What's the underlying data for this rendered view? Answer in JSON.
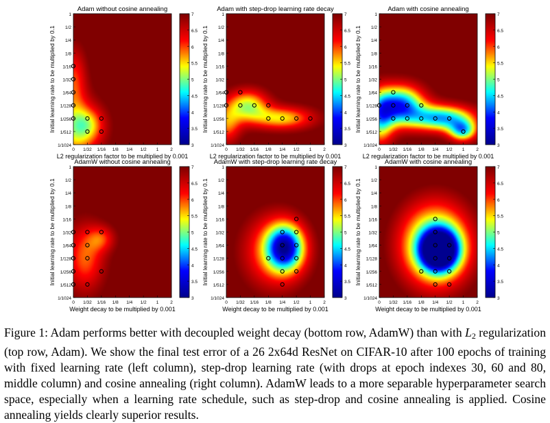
{
  "panel_config": {
    "lr_ticks": [
      "1/1024",
      "1/512",
      "1/256",
      "1/128",
      "1/64",
      "1/32",
      "1/16",
      "1/8",
      "1/4",
      "1/2",
      "1"
    ],
    "wd_ticks": [
      "0",
      "1/32",
      "1/16",
      "1/8",
      "1/4",
      "1/2",
      "1",
      "2"
    ],
    "colorbar_ticks": [
      "3",
      "3.5",
      "4",
      "4.5",
      "5",
      "5.5",
      "6",
      "6.5",
      "7"
    ],
    "ylabel": "Initial learning rate to be multiplied by 0.1",
    "xlabel_top": "L2 regularization factor to be multiplied by 0.001",
    "xlabel_bottom": "Weight decay to be multiplied by 0.001",
    "value_range": [
      3,
      7
    ],
    "colormap": [
      "#00008f",
      "#0000ff",
      "#00ffff",
      "#ffff00",
      "#ff0000",
      "#800000"
    ]
  },
  "chart_data": [
    {
      "type": "heatmap",
      "title": "Adam without cosine annealing",
      "xlabel": "L2 regularization factor to be multiplied by 0.001",
      "ylabel": "Initial learning rate to be multiplied by 0.1",
      "colorbar_range": [
        3,
        7
      ],
      "base_value": 7.2,
      "basins": [
        {
          "x": 0,
          "y": 1,
          "value": 5.6,
          "sx": 1.8,
          "sy": 2.5
        },
        {
          "x": 0,
          "y": 5,
          "value": 6.1,
          "sx": 0.9,
          "sy": 2.5
        },
        {
          "x": 1,
          "y": 1.5,
          "value": 6.2,
          "sx": 1.2,
          "sy": 1.3
        }
      ],
      "markers": [
        [
          0,
          6
        ],
        [
          0,
          5
        ],
        [
          0,
          4
        ],
        [
          0,
          3
        ],
        [
          0,
          2
        ],
        [
          1,
          2
        ],
        [
          2,
          2
        ],
        [
          1,
          1
        ],
        [
          2,
          1
        ]
      ]
    },
    {
      "type": "heatmap",
      "title": "Adam with step-drop learning rate decay",
      "xlabel": "L2 regularization factor to be multiplied by 0.001",
      "ylabel": "Initial learning rate to be multiplied by 0.1",
      "colorbar_range": [
        3,
        7
      ],
      "base_value": 7.2,
      "basins": [
        {
          "x": 1.5,
          "y": 3,
          "value": 5.3,
          "sx": 1.5,
          "sy": 1.2
        },
        {
          "x": 4,
          "y": 2,
          "value": 5.5,
          "sx": 2.3,
          "sy": 0.9
        },
        {
          "x": 0,
          "y": 1.5,
          "value": 5.9,
          "sx": 1.0,
          "sy": 1.5
        }
      ],
      "markers": [
        [
          0,
          4
        ],
        [
          1,
          4
        ],
        [
          0,
          3
        ],
        [
          1,
          3
        ],
        [
          2,
          3
        ],
        [
          3,
          3
        ],
        [
          3,
          2
        ],
        [
          4,
          2
        ],
        [
          5,
          2
        ],
        [
          6,
          2
        ]
      ]
    },
    {
      "type": "heatmap",
      "title": "Adam with cosine annealing",
      "xlabel": "L2 regularization factor to be multiplied by 0.001",
      "ylabel": "Initial learning rate to be multiplied by 0.1",
      "colorbar_range": [
        3,
        7
      ],
      "base_value": 7.2,
      "basins": [
        {
          "x": 1.5,
          "y": 3,
          "value": 4.1,
          "sx": 1.7,
          "sy": 1.5
        },
        {
          "x": 4.5,
          "y": 2,
          "value": 4.4,
          "sx": 2.3,
          "sy": 1.0
        },
        {
          "x": 0,
          "y": 2,
          "value": 5.0,
          "sx": 1.0,
          "sy": 2.0
        },
        {
          "x": 6,
          "y": 1,
          "value": 4.9,
          "sx": 1.0,
          "sy": 0.8
        }
      ],
      "markers": [
        [
          1,
          4
        ],
        [
          0,
          3
        ],
        [
          1,
          3
        ],
        [
          2,
          3
        ],
        [
          3,
          3
        ],
        [
          1,
          2
        ],
        [
          2,
          2
        ],
        [
          3,
          2
        ],
        [
          4,
          2
        ],
        [
          5,
          2
        ],
        [
          6,
          1
        ]
      ]
    },
    {
      "type": "heatmap",
      "title": "AdamW without cosine annealing",
      "xlabel": "Weight decay to be multiplied by 0.001",
      "ylabel": "Initial learning rate to be multiplied by 0.1",
      "colorbar_range": [
        3,
        7
      ],
      "base_value": 7.2,
      "basins": [
        {
          "x": 0.8,
          "y": 3,
          "value": 5.9,
          "sx": 1.4,
          "sy": 2.6
        },
        {
          "x": 2,
          "y": 4.5,
          "value": 6.3,
          "sx": 1.0,
          "sy": 1.0
        }
      ],
      "markers": [
        [
          0,
          5
        ],
        [
          1,
          5
        ],
        [
          2,
          5
        ],
        [
          0,
          4
        ],
        [
          1,
          4
        ],
        [
          0,
          3
        ],
        [
          1,
          3
        ],
        [
          0,
          2
        ],
        [
          2,
          2
        ],
        [
          0,
          1
        ],
        [
          1,
          1
        ]
      ]
    },
    {
      "type": "heatmap",
      "title": "AdamW with step-drop learning rate decay",
      "xlabel": "Weight decay to be multiplied by 0.001",
      "ylabel": "Initial learning rate to be multiplied by 0.1",
      "colorbar_range": [
        3,
        7
      ],
      "base_value": 7.4,
      "basins": [
        {
          "x": 4.2,
          "y": 3.8,
          "value": 4.4,
          "sx": 1.3,
          "sy": 1.7
        },
        {
          "x": 3.5,
          "y": 3.5,
          "value": 5.8,
          "sx": 2.6,
          "sy": 3.2
        }
      ],
      "markers": [
        [
          5,
          6
        ],
        [
          4,
          5
        ],
        [
          5,
          5
        ],
        [
          4,
          4
        ],
        [
          5,
          4
        ],
        [
          3,
          3
        ],
        [
          4,
          3
        ],
        [
          5,
          3
        ],
        [
          4,
          2
        ],
        [
          5,
          2
        ],
        [
          4,
          1
        ]
      ]
    },
    {
      "type": "heatmap",
      "title": "AdamW with cosine annealing",
      "xlabel": "Weight decay to be multiplied by 0.001",
      "ylabel": "Initial learning rate to be multiplied by 0.1",
      "colorbar_range": [
        3,
        7
      ],
      "base_value": 7.4,
      "basins": [
        {
          "x": 4.3,
          "y": 3.6,
          "value": 3.1,
          "sx": 1.3,
          "sy": 1.5
        },
        {
          "x": 4,
          "y": 4,
          "value": 4.6,
          "sx": 2.7,
          "sy": 3.4
        }
      ],
      "markers": [
        [
          4,
          6
        ],
        [
          4,
          5
        ],
        [
          4,
          4
        ],
        [
          5,
          4
        ],
        [
          4,
          3
        ],
        [
          5,
          3
        ],
        [
          4,
          2
        ],
        [
          5,
          2
        ],
        [
          3,
          2
        ],
        [
          5,
          1
        ],
        [
          4,
          1
        ]
      ]
    }
  ],
  "caption": {
    "lead": "Figure 1:  Adam performs better with decoupled weight decay (bottom row, AdamW) than with ",
    "L2_symbol": "L",
    "L2_sub": "2",
    "body": " regularization (top row, Adam). We show the final test error of a 26 2x64d ResNet on CIFAR-10 after 100 epochs of training with fixed learning rate (left column), step-drop learning rate (with drops at epoch indexes 30, 60 and 80, middle column) and cosine annealing (right column). AdamW leads to a more separable hyperparameter search space, especially when a learning rate schedule, such as step-drop and cosine annealing is applied. Cosine annealing yields clearly superior results."
  }
}
